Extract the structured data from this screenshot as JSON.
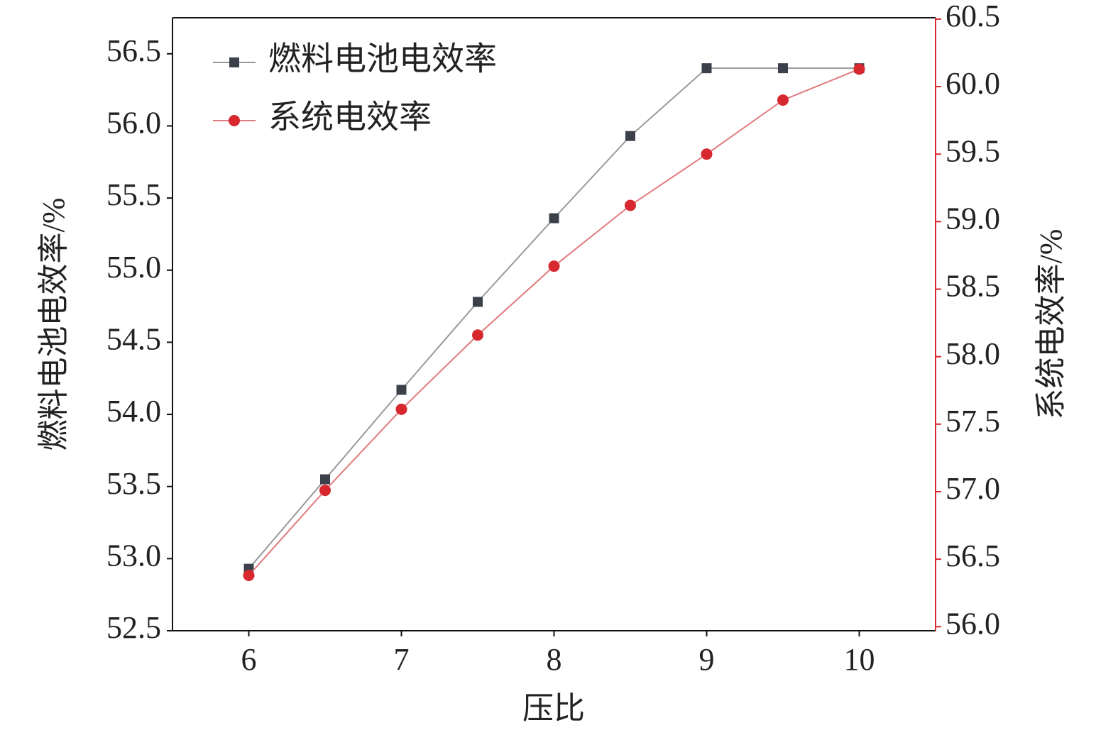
{
  "chart_data": {
    "type": "line",
    "xlabel": "压比",
    "ylabel": "燃料电池电效率/%",
    "y2label": "系统电效率/%",
    "x": [
      6,
      6.5,
      7,
      7.5,
      8,
      8.5,
      9,
      9.5,
      10
    ],
    "xlim": [
      5.5,
      10.5
    ],
    "xticks": [
      6,
      7,
      8,
      9,
      10
    ],
    "ylim": [
      52.5,
      56.75
    ],
    "yticks": [
      52.5,
      {
        "value": 53,
        "label": "53.0"
      },
      53.5,
      {
        "value": 54,
        "label": "54.0"
      },
      54.5,
      {
        "value": 55,
        "label": "55.0"
      },
      55.5,
      {
        "value": 56,
        "label": "56.0"
      },
      56.5
    ],
    "y2lim": [
      55.97,
      60.51
    ],
    "y2ticks": [
      {
        "value": 56,
        "label": "56.0"
      },
      56.5,
      {
        "value": 57,
        "label": "57.0"
      },
      57.5,
      {
        "value": 58,
        "label": "58.0"
      },
      58.5,
      {
        "value": 59,
        "label": "59.0"
      },
      59.5,
      {
        "value": 60,
        "label": "60.0"
      },
      60.5
    ],
    "y2color": "#d7282f",
    "legend": "upper left",
    "grid": false,
    "series": [
      {
        "name": "燃料电池电效率",
        "color": "#3b404b",
        "line_color": "#9a9a9a",
        "marker": "square",
        "values": [
          52.93,
          53.55,
          54.17,
          54.78,
          55.36,
          55.93,
          56.4,
          56.4,
          56.4
        ]
      },
      {
        "name": "系统电效率",
        "color": "#d7282f",
        "line_color": "#e07a7e",
        "marker": "circle",
        "axis": "y2",
        "values": [
          56.38,
          57.01,
          57.61,
          58.16,
          58.67,
          59.12,
          59.5,
          59.9,
          60.13
        ]
      }
    ]
  }
}
